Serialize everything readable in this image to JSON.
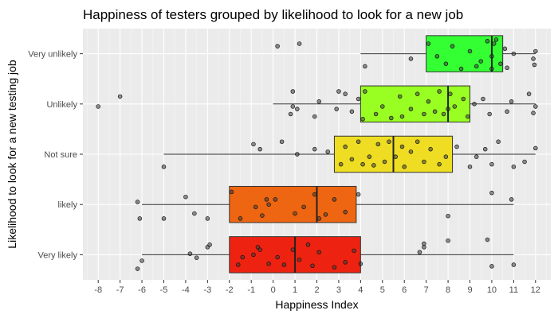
{
  "chart_data": {
    "type": "boxplot",
    "orientation": "horizontal",
    "title": "Happiness of testers grouped by likelihood to look for a new job",
    "xlabel": "Happiness Index",
    "ylabel": "Likelihood to look for a new testing job",
    "xlim": [
      -8.7,
      12.7
    ],
    "x_ticks": [
      "-8",
      "-7",
      "-6",
      "-5",
      "-4",
      "-3",
      "-2",
      "-1",
      "0",
      "1",
      "2",
      "3",
      "4",
      "5",
      "6",
      "7",
      "8",
      "9",
      "10",
      "11",
      "12"
    ],
    "grid": true,
    "legend": "none",
    "groups": [
      {
        "label": "Very unlikely",
        "color": "#33ff33",
        "whisker_low": 4,
        "q1": 7,
        "median": 10,
        "q3": 10.5,
        "whisker_high": 12,
        "points": [
          [
            4.2,
            0.25
          ],
          [
            6.3,
            0.1
          ],
          [
            7.1,
            -0.2
          ],
          [
            7.5,
            0.05
          ],
          [
            7.9,
            0.2
          ],
          [
            8.2,
            -0.15
          ],
          [
            8.6,
            0.3
          ],
          [
            9.0,
            -0.05
          ],
          [
            9.5,
            0.15
          ],
          [
            9.8,
            -0.25
          ],
          [
            10.0,
            0.3
          ],
          [
            10.0,
            0.05
          ],
          [
            10.1,
            -0.2
          ],
          [
            10.4,
            0.2
          ],
          [
            10.6,
            -0.1
          ],
          [
            11.0,
            0.0
          ],
          [
            11.9,
            0.1
          ],
          [
            12.0,
            -0.05
          ],
          [
            11.95,
            0.22
          ],
          [
            0.2,
            -0.15
          ],
          [
            1.2,
            -0.2
          ],
          [
            9.3,
            0.25
          ],
          [
            10.7,
            0.28
          ],
          [
            10.2,
            -0.28
          ]
        ]
      },
      {
        "label": "Unlikely",
        "color": "#99ff22",
        "whisker_low": 0,
        "q1": 4,
        "median": 8,
        "q3": 9,
        "whisker_high": 12,
        "points": [
          [
            -8.0,
            0.05
          ],
          [
            -7.0,
            -0.15
          ],
          [
            0.9,
            0.05
          ],
          [
            0.9,
            -0.25
          ],
          [
            0.8,
            0.2
          ],
          [
            1.1,
            0.1
          ],
          [
            1.9,
            0.25
          ],
          [
            2.1,
            -0.05
          ],
          [
            2.9,
            0.1
          ],
          [
            3.3,
            -0.2
          ],
          [
            3.6,
            0.15
          ],
          [
            3.9,
            -0.1
          ],
          [
            4.1,
            0.3
          ],
          [
            4.2,
            -0.25
          ],
          [
            4.7,
            0.2
          ],
          [
            5.0,
            0.05
          ],
          [
            5.4,
            0.28
          ],
          [
            5.8,
            -0.15
          ],
          [
            5.9,
            0.25
          ],
          [
            6.3,
            0.1
          ],
          [
            6.6,
            -0.2
          ],
          [
            7.1,
            -0.05
          ],
          [
            7.4,
            0.15
          ],
          [
            7.8,
            0.2
          ],
          [
            8.0,
            0.1
          ],
          [
            8.1,
            -0.2
          ],
          [
            8.3,
            0.05
          ],
          [
            8.7,
            -0.1
          ],
          [
            8.9,
            0.25
          ],
          [
            9.2,
            0.0
          ],
          [
            9.6,
            -0.1
          ],
          [
            9.9,
            0.2
          ],
          [
            10.7,
            0.15
          ],
          [
            10.9,
            -0.05
          ],
          [
            11.9,
            0.18
          ],
          [
            12.0,
            0.05
          ],
          [
            11.7,
            -0.2
          ],
          [
            3.0,
            -0.25
          ],
          [
            7.6,
            -0.25
          ],
          [
            6.9,
            0.2
          ]
        ]
      },
      {
        "label": "Not sure",
        "color": "#eedd22",
        "whisker_low": -5,
        "q1": 2.8,
        "median": 5.5,
        "q3": 8.2,
        "whisker_high": 12,
        "points": [
          [
            -5.0,
            0.25
          ],
          [
            -0.9,
            -0.2
          ],
          [
            -0.6,
            -0.1
          ],
          [
            0.4,
            -0.25
          ],
          [
            1.1,
            0.0
          ],
          [
            2.5,
            -0.05
          ],
          [
            3.1,
            0.2
          ],
          [
            3.3,
            -0.15
          ],
          [
            3.6,
            0.1
          ],
          [
            3.9,
            -0.25
          ],
          [
            4.1,
            0.2
          ],
          [
            4.4,
            0.05
          ],
          [
            4.8,
            -0.2
          ],
          [
            5.1,
            0.15
          ],
          [
            5.3,
            -0.25
          ],
          [
            5.6,
            0.05
          ],
          [
            6.0,
            0.25
          ],
          [
            6.3,
            -0.05
          ],
          [
            6.6,
            -0.25
          ],
          [
            6.9,
            0.15
          ],
          [
            7.2,
            -0.1
          ],
          [
            7.6,
            0.2
          ],
          [
            7.9,
            0.05
          ],
          [
            8.4,
            -0.15
          ],
          [
            9.0,
            0.25
          ],
          [
            9.3,
            0.05
          ],
          [
            9.7,
            -0.1
          ],
          [
            10.0,
            0.2
          ],
          [
            10.3,
            -0.25
          ],
          [
            11.0,
            0.25
          ],
          [
            11.5,
            0.15
          ],
          [
            12.0,
            -0.12
          ],
          [
            5.9,
            -0.15
          ],
          [
            4.6,
            0.22
          ],
          [
            1.9,
            -0.1
          ]
        ]
      },
      {
        "label": "likely",
        "color": "#ee6611",
        "whisker_low": -6,
        "q1": -2,
        "median": 2,
        "q3": 3.8,
        "whisker_high": 11,
        "points": [
          [
            -6.1,
            0.28
          ],
          [
            -6.2,
            -0.05
          ],
          [
            -5.0,
            0.28
          ],
          [
            -4.0,
            -0.15
          ],
          [
            -3.6,
            0.18
          ],
          [
            -3.0,
            0.28
          ],
          [
            -1.5,
            0.28
          ],
          [
            -0.5,
            0.22
          ],
          [
            -0.2,
            0.0
          ],
          [
            -0.3,
            -0.1
          ],
          [
            -0.8,
            0.05
          ],
          [
            0.1,
            -0.1
          ],
          [
            1.0,
            0.18
          ],
          [
            1.4,
            0.05
          ],
          [
            1.9,
            -0.2
          ],
          [
            2.1,
            0.28
          ],
          [
            2.4,
            0.2
          ],
          [
            2.8,
            -0.1
          ],
          [
            3.3,
            0.15
          ],
          [
            3.9,
            -0.2
          ],
          [
            8.0,
            0.23
          ],
          [
            10.0,
            -0.23
          ],
          [
            10.9,
            -0.1
          ],
          [
            -1.9,
            -0.25
          ]
        ]
      },
      {
        "label": "Very likely",
        "color": "#ee2211",
        "whisker_low": -6,
        "q1": -2,
        "median": 1,
        "q3": 4,
        "whisker_high": 11,
        "points": [
          [
            -6.2,
            0.28
          ],
          [
            -6.0,
            0.12
          ],
          [
            -3.8,
            -0.02
          ],
          [
            -3.5,
            0.06
          ],
          [
            -3.0,
            -0.15
          ],
          [
            -2.9,
            -0.2
          ],
          [
            -1.6,
            0.2
          ],
          [
            -1.4,
            0.05
          ],
          [
            -0.9,
            0.0
          ],
          [
            -0.6,
            -0.1
          ],
          [
            -0.2,
            0.18
          ],
          [
            0.2,
            0.05
          ],
          [
            0.9,
            -0.1
          ],
          [
            1.2,
            0.1
          ],
          [
            1.6,
            -0.2
          ],
          [
            1.8,
            0.22
          ],
          [
            2.1,
            -0.05
          ],
          [
            2.8,
            0.25
          ],
          [
            3.3,
            0.15
          ],
          [
            3.7,
            -0.08
          ],
          [
            4.0,
            0.18
          ],
          [
            6.7,
            -0.05
          ],
          [
            6.9,
            -0.22
          ],
          [
            6.9,
            -0.15
          ],
          [
            8.0,
            -0.28
          ],
          [
            10.0,
            0.23
          ],
          [
            11.0,
            0.2
          ],
          [
            9.8,
            -0.3
          ],
          [
            -0.7,
            -0.15
          ],
          [
            0.5,
            0.2
          ]
        ]
      }
    ]
  }
}
